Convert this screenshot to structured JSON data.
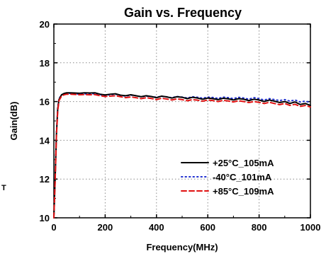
{
  "chart_data": {
    "type": "line",
    "title": "Gain vs. Frequency",
    "xlabel": "Frequency(MHz)",
    "ylabel": "Gain(dB)",
    "xlim": [
      0,
      1000
    ],
    "ylim": [
      10,
      20
    ],
    "xticks": [
      "0",
      "200",
      "400",
      "600",
      "800",
      "1000"
    ],
    "yticks": [
      "10",
      "12",
      "14",
      "16",
      "18",
      "20"
    ],
    "grid": true,
    "legend_position": "bottom-right",
    "series": [
      {
        "name": "+25°C_105mA",
        "color": "#000000",
        "style": "solid",
        "x": [
          0,
          5,
          10,
          15,
          20,
          30,
          40,
          50,
          60,
          80,
          100,
          120,
          140,
          160,
          180,
          200,
          220,
          240,
          260,
          280,
          300,
          320,
          340,
          360,
          380,
          400,
          420,
          440,
          460,
          480,
          500,
          520,
          540,
          560,
          580,
          600,
          620,
          640,
          660,
          680,
          700,
          720,
          740,
          760,
          780,
          800,
          820,
          840,
          860,
          880,
          900,
          920,
          940,
          960,
          980,
          1000
        ],
        "y": [
          10.0,
          12.0,
          14.3,
          15.6,
          16.1,
          16.35,
          16.42,
          16.45,
          16.45,
          16.44,
          16.43,
          16.45,
          16.44,
          16.45,
          16.38,
          16.34,
          16.38,
          16.4,
          16.33,
          16.3,
          16.35,
          16.3,
          16.25,
          16.3,
          16.26,
          16.2,
          16.28,
          16.24,
          16.18,
          16.25,
          16.22,
          16.15,
          16.22,
          16.18,
          16.12,
          16.18,
          16.15,
          16.1,
          16.17,
          16.14,
          16.08,
          16.15,
          16.12,
          16.05,
          16.12,
          16.08,
          16.0,
          16.08,
          16.02,
          15.95,
          16.0,
          15.9,
          15.98,
          15.85,
          15.9,
          15.8
        ]
      },
      {
        "name": "-40°C_101mA",
        "color": "#1f2fd0",
        "style": "dotted",
        "x": [
          0,
          5,
          10,
          15,
          20,
          30,
          40,
          50,
          60,
          80,
          100,
          120,
          140,
          160,
          180,
          200,
          220,
          240,
          260,
          280,
          300,
          320,
          340,
          360,
          380,
          400,
          420,
          440,
          460,
          480,
          500,
          520,
          540,
          560,
          580,
          600,
          620,
          640,
          660,
          680,
          700,
          720,
          740,
          760,
          780,
          800,
          820,
          840,
          860,
          880,
          900,
          920,
          940,
          960,
          980,
          1000
        ],
        "y": [
          10.0,
          12.1,
          14.4,
          15.7,
          16.15,
          16.35,
          16.4,
          16.42,
          16.42,
          16.4,
          16.38,
          16.4,
          16.38,
          16.42,
          16.36,
          16.32,
          16.36,
          16.38,
          16.32,
          16.28,
          16.33,
          16.3,
          16.25,
          16.28,
          16.26,
          16.22,
          16.27,
          16.24,
          16.2,
          16.26,
          16.23,
          16.18,
          16.25,
          16.22,
          16.17,
          16.23,
          16.21,
          16.16,
          16.23,
          16.2,
          16.15,
          16.22,
          16.18,
          16.12,
          16.2,
          16.15,
          16.08,
          16.15,
          16.1,
          16.05,
          16.1,
          16.02,
          16.08,
          15.98,
          16.02,
          15.95
        ]
      },
      {
        "name": "+85°C_109mA",
        "color": "#e01010",
        "style": "dashed",
        "x": [
          0,
          5,
          10,
          15,
          20,
          30,
          40,
          50,
          60,
          80,
          100,
          120,
          140,
          160,
          180,
          200,
          220,
          240,
          260,
          280,
          300,
          320,
          340,
          360,
          380,
          400,
          420,
          440,
          460,
          480,
          500,
          520,
          540,
          560,
          580,
          600,
          620,
          640,
          660,
          680,
          700,
          720,
          740,
          760,
          780,
          800,
          820,
          840,
          860,
          880,
          900,
          920,
          940,
          960,
          980,
          1000
        ],
        "y": [
          10.0,
          11.9,
          14.2,
          15.5,
          16.05,
          16.28,
          16.35,
          16.38,
          16.38,
          16.37,
          16.35,
          16.36,
          16.35,
          16.36,
          16.3,
          16.26,
          16.28,
          16.3,
          16.25,
          16.2,
          16.24,
          16.2,
          16.15,
          16.2,
          16.16,
          16.1,
          16.17,
          16.13,
          16.08,
          16.14,
          16.1,
          16.04,
          16.1,
          16.07,
          16.02,
          16.08,
          16.05,
          16.0,
          16.06,
          16.03,
          15.98,
          16.04,
          16.0,
          15.95,
          16.0,
          15.96,
          15.9,
          15.96,
          15.9,
          15.84,
          15.9,
          15.8,
          15.86,
          15.75,
          15.8,
          15.72
        ]
      }
    ]
  },
  "stray_text": "T"
}
